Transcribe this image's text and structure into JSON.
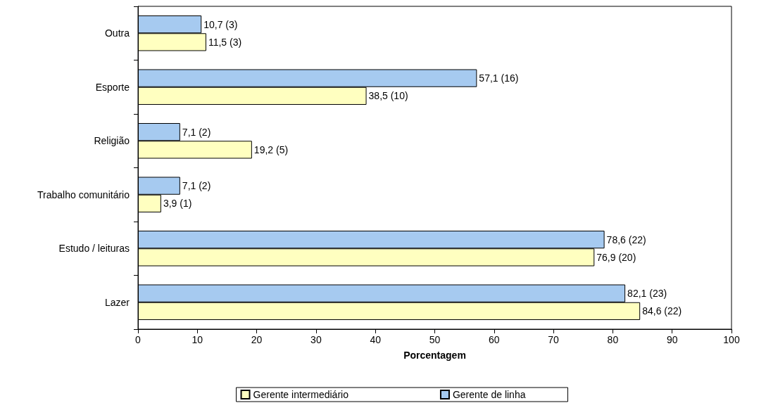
{
  "chart_data": {
    "type": "bar",
    "orientation": "horizontal",
    "xlabel": "Porcentagem",
    "categories": [
      "Outra",
      "Esporte",
      "Religião",
      "Trabalho comunitário",
      "Estudo / leituras",
      "Lazer"
    ],
    "series": [
      {
        "name": "Gerente intermediário",
        "color": "#ffffc0",
        "values": [
          11.5,
          38.5,
          19.2,
          3.9,
          76.9,
          84.6
        ],
        "value_labels": [
          "11,5 (3)",
          "38,5 (10)",
          "19,2 (5)",
          "3,9 (1)",
          "76,9 (20)",
          "84,6 (22)"
        ]
      },
      {
        "name": "Gerente de linha",
        "color": "#a6caf0",
        "values": [
          10.7,
          57.1,
          7.1,
          7.1,
          78.6,
          82.1
        ],
        "value_labels": [
          "10,7 (3)",
          "57,1 (16)",
          "7,1 (2)",
          "7,1 (2)",
          "78,6 (22)",
          "82,1 (23)"
        ]
      }
    ],
    "xlim": [
      0,
      100
    ],
    "xticks": [
      0,
      10,
      20,
      30,
      40,
      50,
      60,
      70,
      80,
      90,
      100
    ],
    "grid": false,
    "legend": "bottom"
  }
}
